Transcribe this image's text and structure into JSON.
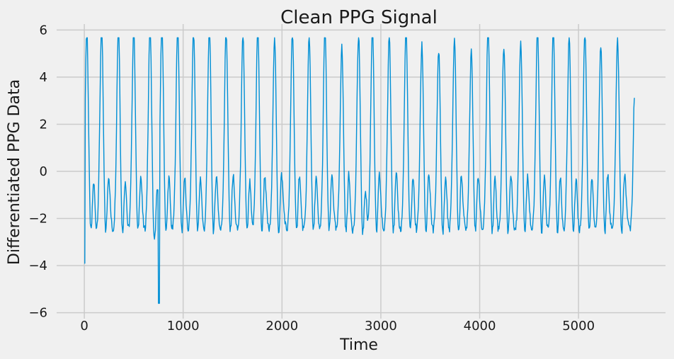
{
  "chart_data": {
    "type": "line",
    "title": "Clean PPG Signal",
    "xlabel": "Time",
    "ylabel": "Differentiated PPG Data",
    "xlim": [
      -280,
      5880
    ],
    "ylim": [
      -6.25,
      6.25
    ],
    "xticks": [
      0,
      1000,
      2000,
      3000,
      4000,
      5000
    ],
    "yticks": [
      -6,
      -4,
      -2,
      0,
      2,
      4,
      6
    ],
    "grid": true,
    "legend": "none",
    "series_color": "#008fd5",
    "clip_value": 5.67,
    "sample_step": 5,
    "series": [
      {
        "beats": [
          {
            "t": 0,
            "peak": 5.45
          },
          {
            "t": 150,
            "peak": 5.67
          },
          {
            "t": 320,
            "peak": 5.67
          },
          {
            "t": 475,
            "peak": 5.67
          },
          {
            "t": 640,
            "peak": 5.67
          },
          {
            "t": 760,
            "peak": 5.67
          },
          {
            "t": 920,
            "peak": 5.67
          },
          {
            "t": 1080,
            "peak": 5.45
          },
          {
            "t": 1240,
            "peak": 5.67
          },
          {
            "t": 1410,
            "peak": 5.5
          },
          {
            "t": 1580,
            "peak": 5.2
          },
          {
            "t": 1730,
            "peak": 5.67
          },
          {
            "t": 1900,
            "peak": 5.15
          },
          {
            "t": 2080,
            "peak": 5.45
          },
          {
            "t": 2250,
            "peak": 5.2
          },
          {
            "t": 2410,
            "peak": 5.5
          },
          {
            "t": 2580,
            "peak": 4.7
          },
          {
            "t": 2750,
            "peak": 5.3
          },
          {
            "t": 2890,
            "peak": 5.67
          },
          {
            "t": 3060,
            "peak": 5.3
          },
          {
            "t": 3230,
            "peak": 5.5
          },
          {
            "t": 3390,
            "peak": 4.8
          },
          {
            "t": 3560,
            "peak": 4.6
          },
          {
            "t": 3720,
            "peak": 5.1
          },
          {
            "t": 3890,
            "peak": 4.6
          },
          {
            "t": 4060,
            "peak": 5.67
          },
          {
            "t": 4220,
            "peak": 4.75
          },
          {
            "t": 4390,
            "peak": 5.0
          },
          {
            "t": 4560,
            "peak": 5.6
          },
          {
            "t": 4720,
            "peak": 5.5
          },
          {
            "t": 4880,
            "peak": 5.1
          },
          {
            "t": 5040,
            "peak": 5.5
          },
          {
            "t": 5200,
            "peak": 4.85
          },
          {
            "t": 5370,
            "peak": 5.0
          },
          {
            "t": 5550,
            "peak": 4.3
          }
        ]
      }
    ],
    "extremes": [
      {
        "t": 0,
        "y": -3.9
      },
      {
        "t": 755,
        "y": -5.6
      },
      {
        "t": 5570,
        "y": 3.1
      }
    ]
  }
}
